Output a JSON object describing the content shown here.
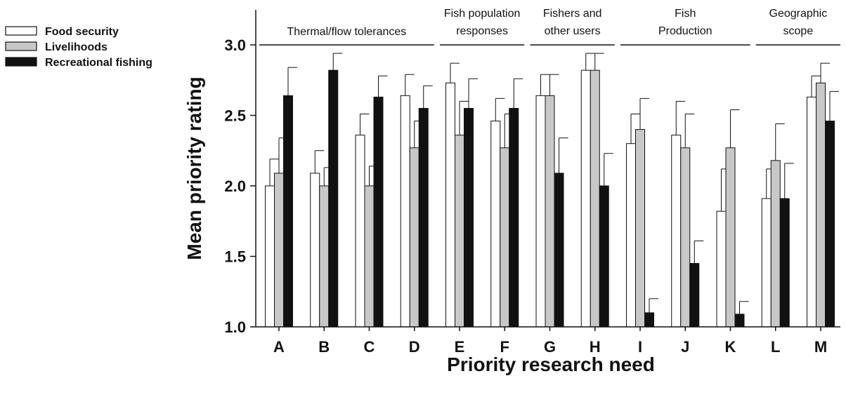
{
  "chart_data": {
    "type": "bar",
    "xlabel": "Priority research need",
    "ylabel": "Mean priority rating",
    "ylim": [
      1.0,
      3.0
    ],
    "yticks": [
      "1.0",
      "1.5",
      "2.0",
      "2.5",
      "3.0"
    ],
    "grid": false,
    "legend_position": "top-left",
    "categories": [
      "A",
      "B",
      "C",
      "D",
      "E",
      "F",
      "G",
      "H",
      "I",
      "J",
      "K",
      "L",
      "M"
    ],
    "series": [
      {
        "name": "Food security",
        "color": "#ffffff",
        "values": [
          2.0,
          2.09,
          2.36,
          2.64,
          2.73,
          2.46,
          2.64,
          2.82,
          2.3,
          2.36,
          1.82,
          1.91,
          2.63
        ],
        "errors": [
          0.19,
          0.16,
          0.15,
          0.15,
          0.14,
          0.16,
          0.15,
          0.12,
          0.21,
          0.24,
          0.3,
          0.21,
          0.15
        ]
      },
      {
        "name": "Livelihoods",
        "color": "#c8c8c8",
        "values": [
          2.09,
          2.0,
          2.0,
          2.27,
          2.36,
          2.27,
          2.64,
          2.82,
          2.4,
          2.27,
          2.27,
          2.18,
          2.73
        ],
        "errors": [
          0.25,
          0.13,
          0.14,
          0.19,
          0.24,
          0.24,
          0.15,
          0.12,
          0.22,
          0.24,
          0.27,
          0.26,
          0.14
        ]
      },
      {
        "name": "Recreational fishing",
        "color": "#111111",
        "values": [
          2.64,
          2.82,
          2.63,
          2.55,
          2.55,
          2.55,
          2.09,
          2.0,
          1.1,
          1.45,
          1.09,
          1.91,
          2.46
        ],
        "errors": [
          0.2,
          0.12,
          0.15,
          0.16,
          0.21,
          0.21,
          0.25,
          0.23,
          0.1,
          0.16,
          0.09,
          0.25,
          0.21
        ]
      }
    ],
    "groups": [
      {
        "label_lines": [
          "Thermal/flow tolerances"
        ],
        "from": "A",
        "to": "D"
      },
      {
        "label_lines": [
          "Fish population",
          "responses"
        ],
        "from": "E",
        "to": "F"
      },
      {
        "label_lines": [
          "Fishers and",
          "other users"
        ],
        "from": "G",
        "to": "H"
      },
      {
        "label_lines": [
          "Fish",
          "Production"
        ],
        "from": "I",
        "to": "K"
      },
      {
        "label_lines": [
          "Geographic",
          "scope"
        ],
        "from": "L",
        "to": "M"
      }
    ]
  }
}
